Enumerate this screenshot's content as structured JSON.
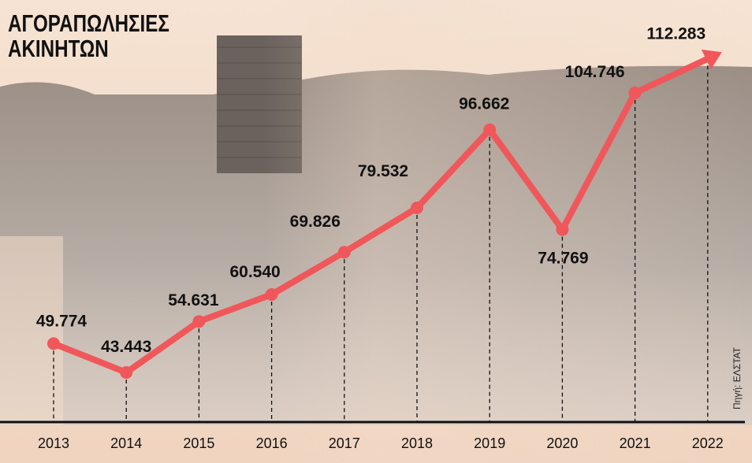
{
  "title_lines": [
    "ΑΓΟΡΑΠΩΛΗΣΙΕΣ",
    "ΑΚΙΝΗΤΩΝ"
  ],
  "source": "Πηγή: ΕΛΣΤΑΤ",
  "colors": {
    "line": "#f0575a",
    "text": "#111111",
    "background": "#f3dccb"
  },
  "chart_data": {
    "type": "line",
    "title": "ΑΓΟΡΑΠΩΛΗΣΙΕΣ ΑΚΙΝΗΤΩΝ",
    "xlabel": "",
    "ylabel": "",
    "categories": [
      "2013",
      "2014",
      "2015",
      "2016",
      "2017",
      "2018",
      "2019",
      "2020",
      "2021",
      "2022"
    ],
    "values": [
      49774,
      43443,
      54631,
      60540,
      69826,
      79532,
      96662,
      74769,
      104746,
      112283
    ],
    "value_labels": [
      "49.774",
      "43.443",
      "54.631",
      "60.540",
      "69.826",
      "79.532",
      "96.662",
      "74.769",
      "104.746",
      "112.283"
    ],
    "ylim": [
      23600,
      125100
    ],
    "grid": false,
    "legend": "none"
  }
}
